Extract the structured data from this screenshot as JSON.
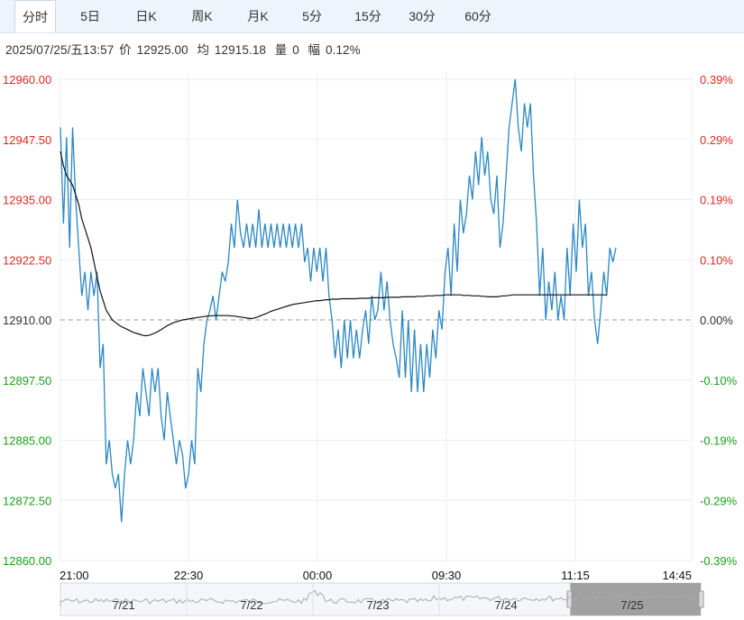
{
  "tabs": [
    {
      "label": "分时",
      "active": true
    },
    {
      "label": "5日",
      "active": false
    },
    {
      "label": "日K",
      "active": false
    },
    {
      "label": "周K",
      "active": false
    },
    {
      "label": "月K",
      "active": false
    },
    {
      "label": "5分",
      "active": false
    },
    {
      "label": "15分",
      "active": false
    },
    {
      "label": "30分",
      "active": false
    },
    {
      "label": "60分",
      "active": false
    }
  ],
  "info": {
    "datetime": "2025/07/25/五13:57",
    "price_label": "价",
    "price": "12925.00",
    "avg_label": "均",
    "avg": "12915.18",
    "volume_label": "量",
    "volume": "0",
    "change_label": "幅",
    "change": "0.12%"
  },
  "colors": {
    "up": "#e0281c",
    "down": "#18a018",
    "price_line": "#2a87c4",
    "avg_line": "#111111",
    "grid": "#e8eef5",
    "navigator_fill": "#8c8c8c"
  },
  "chart_data": {
    "type": "line",
    "title": "",
    "xlabel": "",
    "ylabel": "",
    "prev_close": 12910.0,
    "ylim": [
      12860.0,
      12960.0
    ],
    "y_ticks_left": [
      "12960.00",
      "12947.50",
      "12935.00",
      "12922.50",
      "12910.00",
      "12897.50",
      "12885.00",
      "12872.50",
      "12860.00"
    ],
    "y_ticks_right": [
      "0.39%",
      "0.29%",
      "0.19%",
      "0.10%",
      "0.00%",
      "-0.10%",
      "-0.19%",
      "-0.29%",
      "-0.39%"
    ],
    "x_ticks": [
      "21:00",
      "22:30",
      "00:00",
      "09:30",
      "11:15",
      "14:45"
    ],
    "series": [
      {
        "values": [
          12950,
          12930,
          12948,
          12925,
          12950,
          12935,
          12925,
          12915,
          12920,
          12912,
          12920,
          12915,
          12920,
          12900,
          12905,
          12880,
          12885,
          12878,
          12875,
          12878,
          12868,
          12878,
          12885,
          12880,
          12885,
          12895,
          12890,
          12900,
          12895,
          12890,
          12900,
          12895,
          12900,
          12890,
          12885,
          12895,
          12890,
          12885,
          12880,
          12885,
          12882,
          12875,
          12878,
          12885,
          12880,
          12900,
          12895,
          12905,
          12910,
          12912,
          12915,
          12910,
          12915,
          12920,
          12918,
          12922,
          12930,
          12925,
          12935,
          12928,
          12925,
          12930,
          12925,
          12930,
          12925,
          12933,
          12925,
          12930,
          12925,
          12930,
          12925,
          12930,
          12925,
          12930,
          12925,
          12930,
          12925,
          12930,
          12925,
          12930,
          12922,
          12925,
          12918,
          12925,
          12920,
          12925,
          12918,
          12925,
          12915,
          12910,
          12902,
          12908,
          12900,
          12910,
          12902,
          12910,
          12902,
          12908,
          12902,
          12908,
          12912,
          12905,
          12915,
          12910,
          12912,
          12920,
          12912,
          12918,
          12910,
          12905,
          12902,
          12898,
          12912,
          12898,
          12910,
          12895,
          12908,
          12895,
          12905,
          12895,
          12905,
          12898,
          12908,
          12902,
          12912,
          12908,
          12920,
          12925,
          12915,
          12930,
          12920,
          12935,
          12928,
          12932,
          12940,
          12935,
          12945,
          12938,
          12948,
          12940,
          12945,
          12935,
          12932,
          12940,
          12925,
          12930,
          12940,
          12950,
          12955,
          12960,
          12950,
          12945,
          12955,
          12950,
          12955,
          12940,
          12930,
          12915,
          12925,
          12910,
          12918,
          12912,
          12920,
          12910,
          12915,
          12910,
          12925,
          12915,
          12930,
          12920,
          12935,
          12925,
          12930,
          12915,
          12920,
          12910,
          12905,
          12912,
          12920,
          12915,
          12925,
          12922,
          12925
        ],
        "avg_values": [
          12945,
          12942,
          12940,
          12939,
          12938,
          12936,
          12934,
          12931,
          12929,
          12927,
          12925,
          12922,
          12919,
          12916,
          12914,
          12912,
          12911,
          12910,
          12909.5,
          12909,
          12908.6,
          12908.3,
          12908,
          12907.7,
          12907.4,
          12907.2,
          12907.0,
          12906.8,
          12906.7,
          12906.8,
          12907.0,
          12907.3,
          12907.6,
          12908.0,
          12908.4,
          12908.8,
          12909.1,
          12909.4,
          12909.6,
          12909.8,
          12910.0,
          12910.1,
          12910.2,
          12910.3,
          12910.4,
          12910.5,
          12910.6,
          12910.7,
          12910.8,
          12910.8,
          12910.9,
          12910.9,
          12910.9,
          12910.9,
          12910.9,
          12910.9,
          12910.8,
          12910.8,
          12910.7,
          12910.6,
          12910.5,
          12910.4,
          12910.3,
          12910.3,
          12910.5,
          12910.7,
          12911.0,
          12911.2,
          12911.5,
          12911.8,
          12912.0,
          12912.2,
          12912.4,
          12912.6,
          12912.8,
          12913.0,
          12913.2,
          12913.3,
          12913.4,
          12913.5,
          12913.6,
          12913.7,
          12913.8,
          12913.9,
          12914.0,
          12914.0,
          12914.1,
          12914.2,
          12914.2,
          12914.3,
          12914.3,
          12914.3,
          12914.4,
          12914.4,
          12914.4,
          12914.4,
          12914.4,
          12914.4,
          12914.5,
          12914.5,
          12914.5,
          12914.5,
          12914.6,
          12914.6,
          12914.6,
          12914.6,
          12914.6,
          12914.7,
          12914.7,
          12914.7,
          12914.7,
          12914.7,
          12914.8,
          12914.8,
          12914.8,
          12914.8,
          12914.8,
          12914.9,
          12914.9,
          12914.9,
          12915.0,
          12915.0,
          12915.0,
          12915.1,
          12915.1,
          12915.1,
          12915.2,
          12915.2,
          12915.2,
          12915.2,
          12915.2,
          12915.2,
          12915.1,
          12915.1,
          12915.1,
          12915.0,
          12915.0,
          12915.0,
          12914.9,
          12914.9,
          12914.8,
          12914.8,
          12914.8,
          12914.8,
          12914.9,
          12915.0,
          12915.0,
          12915.1,
          12915.2,
          12915.2,
          12915.2,
          12915.2,
          12915.2,
          12915.2,
          12915.2,
          12915.2,
          12915.2,
          12915.2,
          12915.2,
          12915.2,
          12915.2,
          12915.2,
          12915.2,
          12915.2,
          12915.2,
          12915.2,
          12915.2,
          12915.2,
          12915.2,
          12915.2,
          12915.2,
          12915.2,
          12915.2,
          12915.2,
          12915.2,
          12915.2,
          12915.2,
          12915.2,
          12915.2,
          12915.18
        ]
      }
    ]
  },
  "navigator": {
    "labels": [
      "7/21",
      "7/22",
      "7/23",
      "7/24",
      "7/25"
    ]
  }
}
